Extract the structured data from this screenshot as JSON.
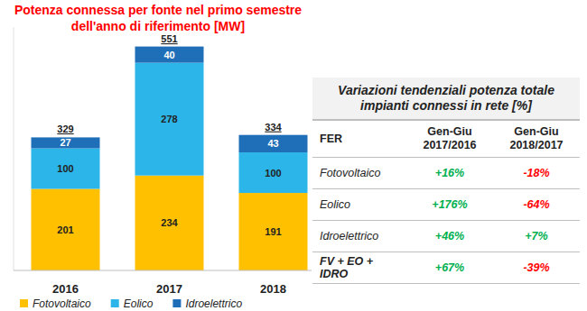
{
  "chart_data": {
    "type": "bar",
    "stacked": true,
    "title": "Potenza connessa per fonte nel primo semestre dell'anno di riferimento [MW]",
    "categories": [
      "2016",
      "2017",
      "2018"
    ],
    "series": [
      {
        "name": "Fotovoltaico",
        "color": "#ffc000",
        "values": [
          201,
          234,
          191
        ]
      },
      {
        "name": "Eolico",
        "color": "#2bb5e8",
        "values": [
          100,
          278,
          100
        ]
      },
      {
        "name": "Idroelettrico",
        "color": "#1f6fb8",
        "values": [
          27,
          40,
          43
        ]
      }
    ],
    "totals": [
      329,
      551,
      334
    ],
    "ylim": [
      0,
      600
    ],
    "grid": false,
    "data_labels": true,
    "tick_labels": "x",
    "legend": "bottom"
  },
  "table": {
    "title": "Variazioni tendenziali potenza totale impianti connessi in rete [%]",
    "header": [
      "FER",
      "Gen-Giu 2017/2016",
      "Gen-Giu 2018/2017"
    ],
    "rows": [
      [
        "Fotovoltaico",
        "+16%",
        "-18%"
      ],
      [
        "Eolico",
        "+176%",
        "-64%"
      ],
      [
        "Idroelettrico",
        "+46%",
        "+7%"
      ],
      [
        "FV + EO + IDRO",
        "+67%",
        "-39%"
      ]
    ]
  }
}
